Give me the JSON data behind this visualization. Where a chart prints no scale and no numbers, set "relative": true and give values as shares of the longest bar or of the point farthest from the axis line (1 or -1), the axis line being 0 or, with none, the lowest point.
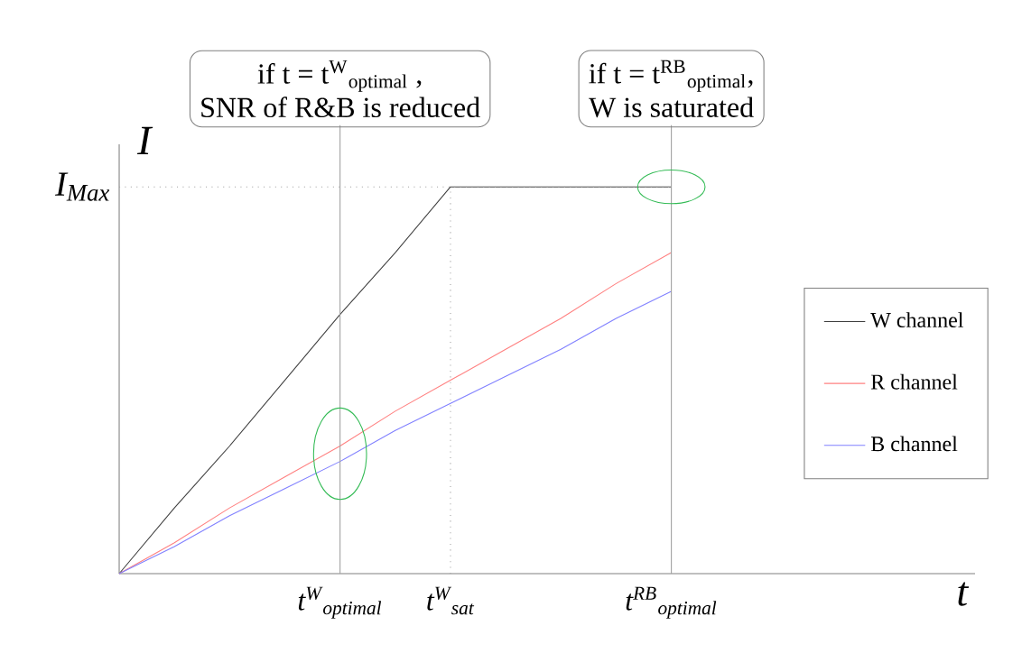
{
  "chart_data": {
    "type": "line",
    "relative": true,
    "xlabel": "t",
    "ylabel": "I",
    "categories": [
      null,
      null,
      null,
      null,
      "t$^{W}$$_{optimal}$",
      null,
      "t$^{W}$$_{sat}$",
      null,
      null,
      null,
      "t$^{RB}$$_{optimal}$",
      null,
      null,
      null,
      null,
      null
    ],
    "series": [
      {
        "name": "W channel",
        "color": "#404040",
        "values": [
          0,
          0.17,
          0.33,
          0.5,
          0.67,
          0.83,
          1,
          1,
          1,
          1,
          1,
          null,
          null,
          null,
          null,
          null
        ]
      },
      {
        "name": "R channel",
        "color": "#ff8080",
        "values": [
          0,
          0.08,
          0.17,
          0.25,
          0.33,
          0.42,
          0.5,
          0.58,
          0.66,
          0.75,
          0.83,
          null,
          null,
          null,
          null,
          null
        ]
      },
      {
        "name": "B channel",
        "color": "#8080ff",
        "values": [
          0,
          0.07,
          0.15,
          0.22,
          0.29,
          0.37,
          0.44,
          0.51,
          0.58,
          0.66,
          0.73,
          null,
          null,
          null,
          null,
          null
        ]
      }
    ],
    "ref_lines": [
      {
        "axis": "y",
        "value": 1,
        "label": "I$_{Max}$",
        "line_style": "dotted",
        "color": "#a0a0a0"
      },
      {
        "axis": "x",
        "value": "t$^{W}$$_{optimal}$",
        "line_style": "solid",
        "color": "#a0a0a0"
      },
      {
        "axis": "x",
        "value": "t$^{W}$$_{sat}$",
        "line_style": "dotted",
        "color": "#a0a0a0"
      },
      {
        "axis": "x",
        "value": "t$^{RB}$$_{optimal}$",
        "line_style": "solid",
        "color": "#a0a0a0"
      }
    ],
    "annotations": [
      "if t = t$^{W}$$_{optimal}$ ,",
      "SNR of R&B is reduced",
      "if t = t$^{RB}$$_{optimal}$,",
      "W is saturated"
    ],
    "legend": "right",
    "marker": "none",
    "line_style": "solid"
  }
}
